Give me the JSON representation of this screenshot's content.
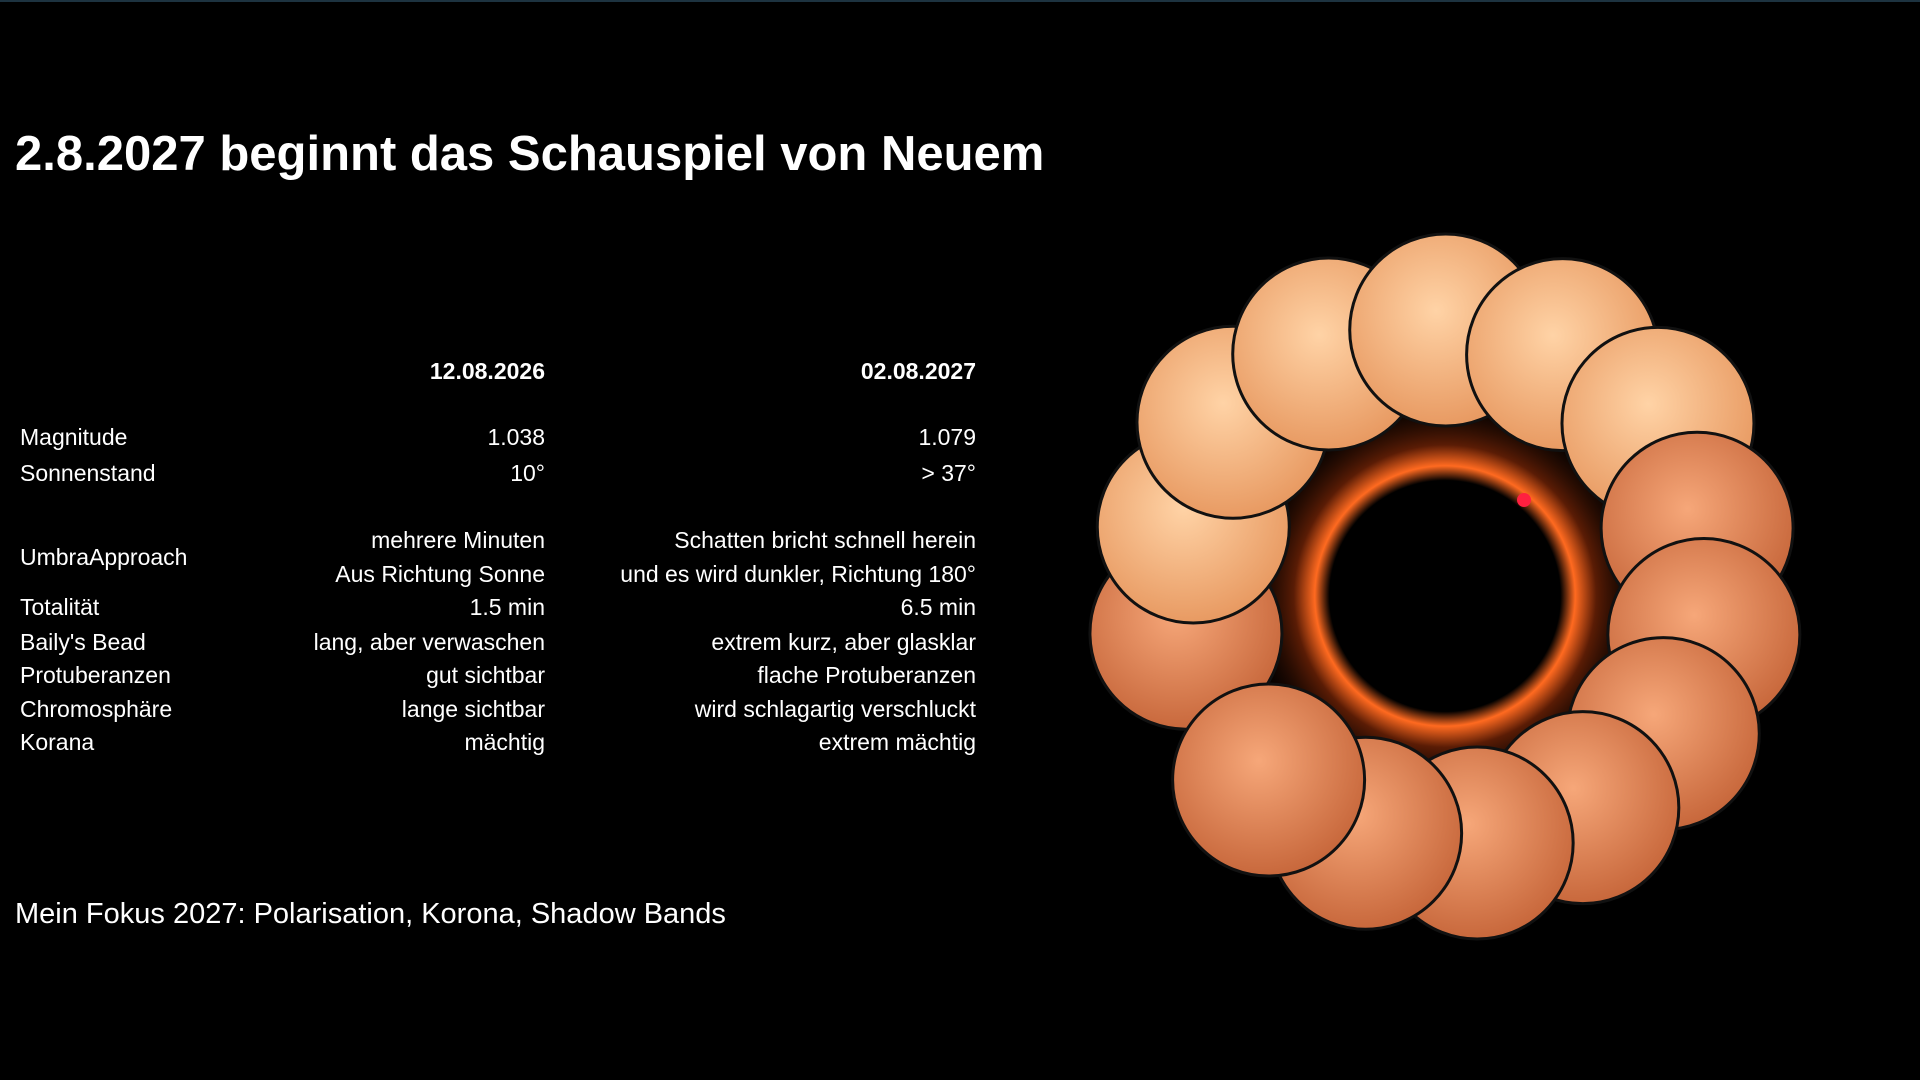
{
  "header": {
    "title": "2.8.2027 beginnt das Schauspiel von Neuem"
  },
  "table": {
    "columns": [
      "12.08.2026",
      "02.08.2027"
    ],
    "rows": [
      {
        "label": "Magnitude",
        "cells": [
          "1.038",
          "1.079"
        ]
      },
      {
        "label": "Sonnenstand",
        "cells": [
          "10°",
          "> 37°"
        ]
      },
      {
        "label": "UmbraApproach",
        "cells": [
          [
            "mehrere Minuten",
            "Aus Richtung Sonne"
          ],
          [
            "Schatten bricht schnell herein",
            "und es wird dunkler, Richtung 180°"
          ]
        ]
      },
      {
        "label": "Totalität",
        "cells": [
          "1.5 min",
          "6.5 min"
        ]
      },
      {
        "label": "Baily's Bead",
        "cells": [
          "lang, aber verwaschen",
          "extrem kurz, aber glasklar"
        ]
      },
      {
        "label": "Protuberanzen",
        "cells": [
          "gut sichtbar",
          "flache Protuberanzen"
        ]
      },
      {
        "label": "Chromosphäre",
        "cells": [
          "lange sichtbar",
          "wird schlagartig verschluckt"
        ]
      },
      {
        "label": "Korana",
        "cells": [
          "mächtig",
          "extrem mächtig"
        ]
      }
    ]
  },
  "footer": {
    "text": "Mein Fokus 2027: Polarisation, Korona, Shadow Bands"
  }
}
